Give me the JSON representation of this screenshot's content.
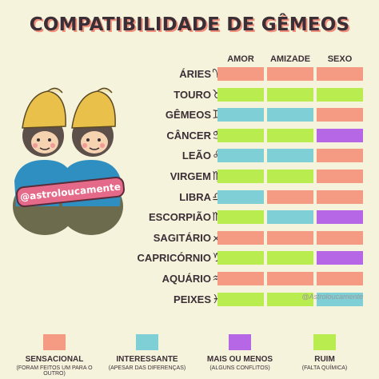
{
  "title": "COMPATIBILIDADE DE GÊMEOS",
  "columns": [
    "AMOR",
    "AMIZADE",
    "SEXO"
  ],
  "colors": {
    "sensacional": "#f59a83",
    "interessante": "#7ecfd6",
    "mais_ou_menos": "#b667e6",
    "ruim": "#b9ec4f"
  },
  "signs": [
    {
      "name": "ÁRIES",
      "glyph": "♈",
      "cells": [
        "sensacional",
        "sensacional",
        "sensacional"
      ]
    },
    {
      "name": "TOURO",
      "glyph": "♉",
      "cells": [
        "ruim",
        "ruim",
        "ruim"
      ]
    },
    {
      "name": "GÊMEOS",
      "glyph": "♊",
      "cells": [
        "interessante",
        "interessante",
        "sensacional"
      ]
    },
    {
      "name": "CÂNCER",
      "glyph": "♋",
      "cells": [
        "ruim",
        "ruim",
        "mais_ou_menos"
      ]
    },
    {
      "name": "LEÃO",
      "glyph": "♌",
      "cells": [
        "interessante",
        "interessante",
        "sensacional"
      ]
    },
    {
      "name": "VIRGEM",
      "glyph": "♍",
      "cells": [
        "ruim",
        "ruim",
        "sensacional"
      ]
    },
    {
      "name": "LIBRA",
      "glyph": "♎",
      "cells": [
        "interessante",
        "sensacional",
        "sensacional"
      ]
    },
    {
      "name": "ESCORPIÃO",
      "glyph": "♏",
      "cells": [
        "ruim",
        "interessante",
        "mais_ou_menos"
      ]
    },
    {
      "name": "SAGITÁRIO",
      "glyph": "♐",
      "cells": [
        "sensacional",
        "sensacional",
        "sensacional"
      ]
    },
    {
      "name": "CAPRICÓRNIO",
      "glyph": "♑",
      "cells": [
        "ruim",
        "ruim",
        "mais_ou_menos"
      ]
    },
    {
      "name": "AQUÁRIO",
      "glyph": "♒",
      "cells": [
        "sensacional",
        "sensacional",
        "sensacional"
      ]
    },
    {
      "name": "PEIXES",
      "glyph": "♓",
      "cells": [
        "ruim",
        "ruim",
        "interessante"
      ]
    }
  ],
  "legend": [
    {
      "key": "sensacional",
      "label": "SENSACIONAL",
      "sub": "(FORAM FEITOS UM PARA O OUTRO)"
    },
    {
      "key": "interessante",
      "label": "INTERESSANTE",
      "sub": "(APESAR DAS DIFERENÇAS)"
    },
    {
      "key": "mais_ou_menos",
      "label": "MAIS OU MENOS",
      "sub": "(ALGUNS CONFLITOS)"
    },
    {
      "key": "ruim",
      "label": "RUIM",
      "sub": "(FALTA QUÍMICA)"
    }
  ],
  "handle": "@astroloucamente",
  "watermark": "@Astroloucamente"
}
